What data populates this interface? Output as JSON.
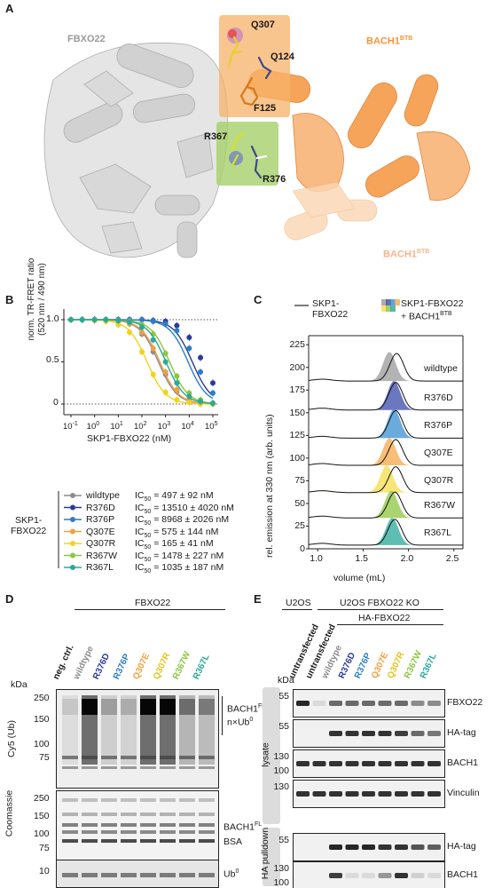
{
  "panels": {
    "a": "A",
    "b": "B",
    "c": "C",
    "d": "D",
    "e": "E"
  },
  "panel_a": {
    "fbxo22_label": "FBXO22",
    "bach1_label_top": "BACH1",
    "bach1_label_bottom": "BACH1",
    "btb_sup": "BTB",
    "residues": [
      "Q307",
      "Q124",
      "F125",
      "R367",
      "R376"
    ],
    "colors": {
      "fbxo22": "#c8c8c8",
      "bach1": "#f4a460",
      "box_orange": "#f7b26a",
      "box_green": "#a6d16a"
    }
  },
  "panel_b": {
    "y_title_line1": "norm. TR-FRET ratio",
    "y_title_line2": "(520 nm / 490 nm)",
    "x_title": "SKP1-FBXO22 (nM)",
    "y_ticks": [
      "1.0",
      "0.5",
      "0"
    ],
    "x_ticks": [
      "10-1",
      "100",
      "101",
      "102",
      "103",
      "104",
      "105"
    ],
    "group_label_line1": "SKP1-",
    "group_label_line2": "FBXO22",
    "ic50_prefix": "IC",
    "ic50_sub": "50",
    "legend": [
      {
        "name": "wildtype",
        "ic50": "= 497 ± 92 nM",
        "color": "#8c8c8c"
      },
      {
        "name": "R376D",
        "ic50": "= 13510 ± 4020 nM",
        "color": "#2b3a9a"
      },
      {
        "name": "R376P",
        "ic50": "= 8968 ± 2026 nM",
        "color": "#2a7fc4"
      },
      {
        "name": "Q307E",
        "ic50": "= 575 ± 144 nM",
        "color": "#f0a040"
      },
      {
        "name": "Q307R",
        "ic50": "= 165 ± 41 nM",
        "color": "#f2d21e"
      },
      {
        "name": "R367W",
        "ic50": "= 1478 ± 227 nM",
        "color": "#8cc63f"
      },
      {
        "name": "R367L",
        "ic50": "= 1035 ± 187 nM",
        "color": "#2aa89a"
      }
    ]
  },
  "chart_data": [
    {
      "type": "line",
      "panel": "B",
      "xlabel": "SKP1-FBXO22 (nM)",
      "ylabel": "norm. TR-FRET ratio (520 nm / 490 nm)",
      "x_scale": "log",
      "xlim": [
        0.1,
        100000
      ],
      "ylim": [
        -0.1,
        1.1
      ],
      "x": [
        0.1,
        0.3,
        1,
        3,
        10,
        30,
        100,
        300,
        1000,
        3000,
        10000,
        30000,
        100000
      ],
      "series": [
        {
          "name": "wildtype",
          "ic50": 497,
          "values": [
            1.0,
            1.0,
            1.0,
            0.99,
            0.98,
            0.95,
            0.83,
            0.62,
            0.35,
            0.15,
            0.05,
            0.02,
            0.0
          ]
        },
        {
          "name": "R376D",
          "ic50": 13510,
          "values": [
            1.0,
            1.0,
            1.0,
            1.0,
            1.0,
            1.0,
            1.0,
            0.99,
            0.98,
            0.93,
            0.79,
            0.55,
            0.25
          ]
        },
        {
          "name": "R376P",
          "ic50": 8968,
          "values": [
            1.0,
            1.0,
            1.0,
            1.0,
            1.0,
            1.0,
            1.0,
            0.98,
            0.95,
            0.87,
            0.66,
            0.38,
            0.13
          ]
        },
        {
          "name": "Q307E",
          "ic50": 575,
          "values": [
            1.0,
            1.0,
            1.0,
            0.99,
            0.98,
            0.95,
            0.85,
            0.66,
            0.38,
            0.17,
            0.06,
            0.02,
            0.0
          ]
        },
        {
          "name": "Q307R",
          "ic50": 165,
          "values": [
            1.0,
            1.0,
            0.99,
            0.98,
            0.94,
            0.85,
            0.62,
            0.35,
            0.14,
            0.05,
            0.02,
            0.0,
            0.0
          ]
        },
        {
          "name": "R367W",
          "ic50": 1478,
          "values": [
            1.0,
            1.0,
            1.0,
            1.0,
            0.99,
            0.98,
            0.94,
            0.83,
            0.6,
            0.33,
            0.13,
            0.05,
            0.01
          ]
        },
        {
          "name": "R367L",
          "ic50": 1035,
          "values": [
            1.0,
            1.0,
            1.0,
            1.0,
            0.99,
            0.97,
            0.91,
            0.76,
            0.5,
            0.25,
            0.09,
            0.03,
            0.01
          ]
        }
      ]
    },
    {
      "type": "line",
      "panel": "C",
      "xlabel": "volume (mL)",
      "ylabel": "rel. emission at 330 nm (arb. units)",
      "xlim": [
        0.9,
        2.6
      ],
      "ylim": [
        0,
        235
      ],
      "x_ticks": [
        "1.0",
        "1.5",
        "2.0",
        "2.5"
      ],
      "y_ticks": [
        "0",
        "25",
        "50",
        "75",
        "100",
        "125",
        "150",
        "175",
        "200",
        "225"
      ],
      "legend_line": "SKP1-FBXO22",
      "legend_line_l1": "SKP1-",
      "legend_line_l2": "FBXO22",
      "legend_fill_l1": "SKP1-FBXO22",
      "legend_fill_l2": "+ BACH1",
      "legend_fill_sup": "BTB",
      "traces": [
        {
          "name": "wildtype",
          "baseline": 185,
          "complex_peak": 1.79,
          "free_peak": 1.87,
          "height": 32,
          "color": "#9a9a9a"
        },
        {
          "name": "R376D",
          "baseline": 153,
          "complex_peak": 1.84,
          "free_peak": 1.86,
          "height": 32,
          "color": "#3a4aa8"
        },
        {
          "name": "R376P",
          "baseline": 122,
          "complex_peak": 1.84,
          "free_peak": 1.86,
          "height": 32,
          "color": "#3a8fd0"
        },
        {
          "name": "Q307E",
          "baseline": 92,
          "complex_peak": 1.79,
          "free_peak": 1.86,
          "height": 30,
          "color": "#f5a84a"
        },
        {
          "name": "Q307R",
          "baseline": 62,
          "complex_peak": 1.76,
          "free_peak": 1.86,
          "height": 30,
          "color": "#f6dc4a"
        },
        {
          "name": "R367W",
          "baseline": 34,
          "complex_peak": 1.81,
          "free_peak": 1.85,
          "height": 30,
          "color": "#8cc63f"
        },
        {
          "name": "R367L",
          "baseline": 4,
          "complex_peak": 1.82,
          "free_peak": 1.85,
          "height": 30,
          "color": "#2aa89a"
        }
      ]
    }
  ],
  "panel_d": {
    "group_label": "FBXO22",
    "kda": "kDa",
    "lanes": [
      {
        "label": "neg. ctrl.",
        "color": "#1a1a1a"
      },
      {
        "label": "wildtype",
        "color": "#8c8c8c"
      },
      {
        "label": "R376D",
        "color": "#2b3a9a"
      },
      {
        "label": "R376P",
        "color": "#2a7fc4"
      },
      {
        "label": "Q307E",
        "color": "#f0a040"
      },
      {
        "label": "Q307R",
        "color": "#e6c41a"
      },
      {
        "label": "R367W",
        "color": "#8cc63f"
      },
      {
        "label": "R367L",
        "color": "#2aa89a"
      }
    ],
    "cy5_label": "Cy5 (Ub)",
    "coomassie_label": "Coomassie",
    "mw_cy5": [
      "250",
      "150",
      "100",
      "75"
    ],
    "mw_coom": [
      "250",
      "150",
      "100",
      "75"
    ],
    "mw_ub": [
      "10"
    ],
    "bach1_ub_label_l1": "BACH1",
    "bach1_ub_label_l2": "n×Ub",
    "bach1_ub_label_l1_sup": "FL",
    "bach1_ub_label_l1_tail": "-",
    "bach1_ub_label_l2_sup": "0",
    "bach1_label": "BACH1",
    "bach1_sup": "FL",
    "bsa_label": "BSA",
    "ub_label": "Ub",
    "ub_sup": "0"
  },
  "panel_e": {
    "u2os": "U2OS",
    "u2os_ko": "U2OS FBXO22 KO",
    "ha_fbxo22": "HA-FBXO22",
    "kda": "kDa",
    "lanes": [
      {
        "label": "untransfected",
        "color": "#1a1a1a"
      },
      {
        "label": "untransfected",
        "color": "#1a1a1a"
      },
      {
        "label": "wildtype",
        "color": "#8c8c8c"
      },
      {
        "label": "R376D",
        "color": "#2b3a9a"
      },
      {
        "label": "R376P",
        "color": "#2a7fc4"
      },
      {
        "label": "Q307E",
        "color": "#f0a040"
      },
      {
        "label": "Q307R",
        "color": "#e6c41a"
      },
      {
        "label": "R367W",
        "color": "#8cc63f"
      },
      {
        "label": "R367L",
        "color": "#2aa89a"
      }
    ],
    "lysate_label": "lysate",
    "pulldown_label": "HA pulldown",
    "blots": [
      {
        "name": "FBXO22",
        "mw": [
          "55"
        ]
      },
      {
        "name": "HA-tag",
        "mw": [
          "55"
        ]
      },
      {
        "name": "BACH1",
        "mw": [
          "130",
          "100"
        ]
      },
      {
        "name": "Vinculin",
        "mw": [
          "130"
        ]
      },
      {
        "name": "HA-tag",
        "mw": [
          "55"
        ]
      },
      {
        "name": "BACH1",
        "mw": [
          "130",
          "100"
        ]
      }
    ]
  }
}
